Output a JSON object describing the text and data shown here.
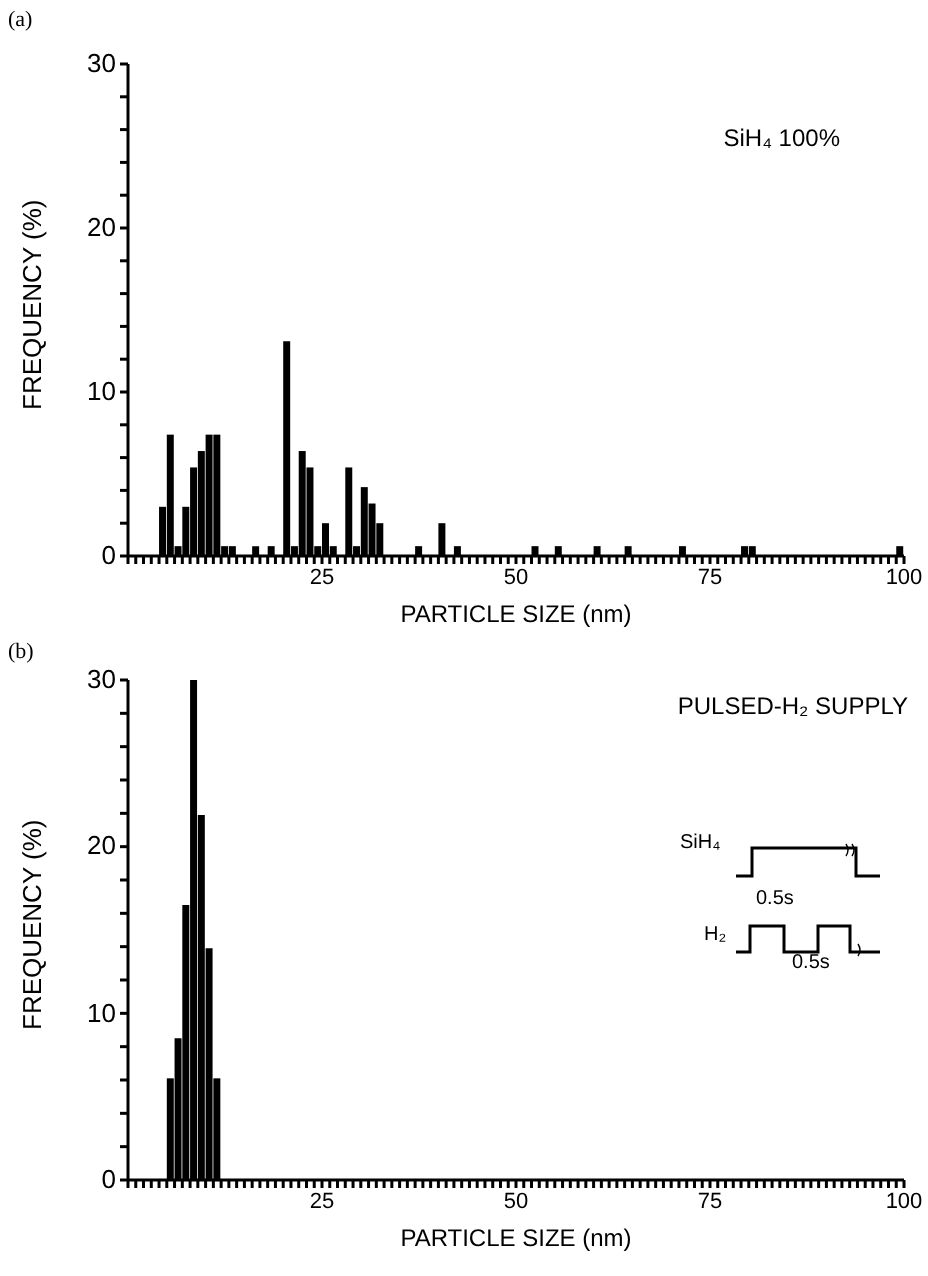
{
  "chart_data": [
    {
      "type": "histogram",
      "title": "(a)",
      "xlabel": "PARTICLE SIZE (nm)",
      "ylabel": "FREQUENCY (%)",
      "annotations": [
        "SiH₄ 100%"
      ],
      "bins": [
        0,
        1,
        2,
        3,
        4,
        5,
        6,
        7,
        8,
        9,
        10,
        11,
        12,
        13,
        14,
        15,
        16,
        17,
        18,
        19,
        20,
        21,
        22,
        23,
        24,
        25,
        26,
        27,
        28,
        29,
        30,
        31,
        32,
        33,
        34,
        35,
        36,
        37,
        38,
        39,
        40,
        41,
        42,
        43,
        44,
        45,
        46,
        47,
        48,
        49,
        50,
        51,
        52,
        53,
        54,
        55,
        56,
        57,
        58,
        59,
        60,
        61,
        62,
        63,
        64,
        65,
        66,
        67,
        68,
        69,
        70,
        71,
        72,
        73,
        74,
        75,
        76,
        77,
        78,
        79,
        80,
        81,
        82,
        83,
        84,
        85,
        86,
        87,
        88,
        89,
        90,
        91,
        92,
        93,
        94,
        95,
        96,
        97,
        98,
        99,
        100
      ],
      "values": [
        0,
        0,
        0,
        0,
        3,
        7.4,
        0.6,
        3,
        5.4,
        6.4,
        7.4,
        7.4,
        0.6,
        0.6,
        0,
        0,
        0.6,
        0,
        0.6,
        0,
        13.1,
        0.6,
        6.4,
        5.4,
        0.6,
        2,
        0.6,
        0,
        5.4,
        0.6,
        4.2,
        3.2,
        2,
        0,
        0,
        0,
        0,
        0.6,
        0,
        0,
        2,
        0,
        0.6,
        0,
        0,
        0,
        0,
        0,
        0,
        0,
        0,
        0,
        0.6,
        0,
        0,
        0.6,
        0,
        0,
        0,
        0,
        0.6,
        0,
        0,
        0,
        0.6,
        0,
        0,
        0,
        0,
        0,
        0,
        0.6,
        0,
        0,
        0,
        0,
        0,
        0,
        0,
        0.6,
        0.6,
        0,
        0,
        0,
        0,
        0,
        0,
        0,
        0,
        0,
        0,
        0,
        0,
        0,
        0,
        0,
        0,
        0,
        0,
        0.6
      ],
      "color": "#000000",
      "xlim": [
        0,
        100
      ],
      "ylim": [
        0,
        30
      ],
      "xticks": [
        {
          "value": 0,
          "label": null
        },
        {
          "value": 1,
          "label": null
        },
        {
          "value": 2,
          "label": null
        },
        {
          "value": 3,
          "label": null
        },
        {
          "value": 4,
          "label": null
        },
        {
          "value": 5,
          "label": null
        },
        {
          "value": 6,
          "label": null
        },
        {
          "value": 7,
          "label": null
        },
        {
          "value": 8,
          "label": null
        },
        {
          "value": 9,
          "label": null
        },
        {
          "value": 10,
          "label": null
        },
        {
          "value": 11,
          "label": null
        },
        {
          "value": 12,
          "label": null
        },
        {
          "value": 13,
          "label": null
        },
        {
          "value": 14,
          "label": null
        },
        {
          "value": 15,
          "label": null
        },
        {
          "value": 16,
          "label": null
        },
        {
          "value": 17,
          "label": null
        },
        {
          "value": 18,
          "label": null
        },
        {
          "value": 19,
          "label": null
        },
        {
          "value": 20,
          "label": null
        },
        {
          "value": 21,
          "label": null
        },
        {
          "value": 22,
          "label": null
        },
        {
          "value": 23,
          "label": null
        },
        {
          "value": 24,
          "label": null
        },
        25,
        {
          "value": 26,
          "label": null
        },
        {
          "value": 27,
          "label": null
        },
        {
          "value": 28,
          "label": null
        },
        {
          "value": 29,
          "label": null
        },
        {
          "value": 30,
          "label": null
        },
        {
          "value": 31,
          "label": null
        },
        {
          "value": 32,
          "label": null
        },
        {
          "value": 33,
          "label": null
        },
        {
          "value": 34,
          "label": null
        },
        {
          "value": 35,
          "label": null
        },
        {
          "value": 36,
          "label": null
        },
        {
          "value": 37,
          "label": null
        },
        {
          "value": 38,
          "label": null
        },
        {
          "value": 39,
          "label": null
        },
        {
          "value": 40,
          "label": null
        },
        {
          "value": 41,
          "label": null
        },
        {
          "value": 42,
          "label": null
        },
        {
          "value": 43,
          "label": null
        },
        {
          "value": 44,
          "label": null
        },
        {
          "value": 45,
          "label": null
        },
        {
          "value": 46,
          "label": null
        },
        {
          "value": 47,
          "label": null
        },
        {
          "value": 48,
          "label": null
        },
        {
          "value": 49,
          "label": null
        },
        50,
        {
          "value": 51,
          "label": null
        },
        {
          "value": 52,
          "label": null
        },
        {
          "value": 53,
          "label": null
        },
        {
          "value": 54,
          "label": null
        },
        {
          "value": 55,
          "label": null
        },
        {
          "value": 56,
          "label": null
        },
        {
          "value": 57,
          "label": null
        },
        {
          "value": 58,
          "label": null
        },
        {
          "value": 59,
          "label": null
        },
        {
          "value": 60,
          "label": null
        },
        {
          "value": 61,
          "label": null
        },
        {
          "value": 62,
          "label": null
        },
        {
          "value": 63,
          "label": null
        },
        {
          "value": 64,
          "label": null
        },
        {
          "value": 65,
          "label": null
        },
        {
          "value": 66,
          "label": null
        },
        {
          "value": 67,
          "label": null
        },
        {
          "value": 68,
          "label": null
        },
        {
          "value": 69,
          "label": null
        },
        {
          "value": 70,
          "label": null
        },
        {
          "value": 71,
          "label": null
        },
        {
          "value": 72,
          "label": null
        },
        {
          "value": 73,
          "label": null
        },
        {
          "value": 74,
          "label": null
        },
        75,
        {
          "value": 76,
          "label": null
        },
        {
          "value": 77,
          "label": null
        },
        {
          "value": 78,
          "label": null
        },
        {
          "value": 79,
          "label": null
        },
        {
          "value": 80,
          "label": null
        },
        {
          "value": 81,
          "label": null
        },
        {
          "value": 82,
          "label": null
        },
        {
          "value": 83,
          "label": null
        },
        {
          "value": 84,
          "label": null
        },
        {
          "value": 85,
          "label": null
        },
        {
          "value": 86,
          "label": null
        },
        {
          "value": 87,
          "label": null
        },
        {
          "value": 88,
          "label": null
        },
        {
          "value": 89,
          "label": null
        },
        {
          "value": 90,
          "label": null
        },
        {
          "value": 91,
          "label": null
        },
        {
          "value": 92,
          "label": null
        },
        {
          "value": 93,
          "label": null
        },
        {
          "value": 94,
          "label": null
        },
        {
          "value": 95,
          "label": null
        },
        {
          "value": 96,
          "label": null
        },
        {
          "value": 97,
          "label": null
        },
        {
          "value": 98,
          "label": null
        },
        {
          "value": 99,
          "label": null
        },
        100
      ],
      "yticks": [
        0,
        {
          "value": 2,
          "label": null
        },
        {
          "value": 4,
          "label": null
        },
        {
          "value": 6,
          "label": null
        },
        {
          "value": 8,
          "label": null
        },
        10,
        {
          "value": 12,
          "label": null
        },
        {
          "value": 14,
          "label": null
        },
        {
          "value": 16,
          "label": null
        },
        {
          "value": 18,
          "label": null
        },
        20,
        {
          "value": 22,
          "label": null
        },
        {
          "value": 24,
          "label": null
        },
        {
          "value": 26,
          "label": null
        },
        {
          "value": 28,
          "label": null
        },
        30
      ],
      "grid": false,
      "legend": false
    },
    {
      "type": "histogram",
      "title": "(b)",
      "xlabel": "PARTICLE SIZE (nm)",
      "ylabel": "FREQUENCY (%)",
      "annotations": [
        "PULSED-H₂ SUPPLY",
        "SiH₄",
        "H₂",
        "0.5s",
        "0.5s"
      ],
      "bins": [
        0,
        1,
        2,
        3,
        4,
        5,
        6,
        7,
        8,
        9,
        10,
        11,
        12,
        13,
        14,
        15,
        16,
        17,
        18,
        19,
        20,
        21,
        22,
        23,
        24,
        25,
        26,
        27,
        28,
        29,
        30,
        31,
        32,
        33,
        34,
        35,
        36,
        37,
        38,
        39,
        40,
        41,
        42,
        43,
        44,
        45,
        46,
        47,
        48,
        49,
        50,
        51,
        52,
        53,
        54,
        55,
        56,
        57,
        58,
        59,
        60,
        61,
        62,
        63,
        64,
        65,
        66,
        67,
        68,
        69,
        70,
        71,
        72,
        73,
        74,
        75,
        76,
        77,
        78,
        79,
        80,
        81,
        82,
        83,
        84,
        85,
        86,
        87,
        88,
        89,
        90,
        91,
        92,
        93,
        94,
        95,
        96,
        97,
        98,
        99,
        100
      ],
      "values": [
        0,
        0,
        0,
        0,
        0,
        6.1,
        8.5,
        16.5,
        30,
        21.9,
        13.9,
        6.1,
        0,
        0,
        0,
        0,
        0,
        0,
        0,
        0,
        0,
        0,
        0,
        0,
        0,
        0,
        0,
        0,
        0,
        0,
        0,
        0,
        0,
        0,
        0,
        0,
        0,
        0,
        0,
        0,
        0,
        0,
        0,
        0,
        0,
        0,
        0,
        0,
        0,
        0,
        0,
        0,
        0,
        0,
        0,
        0,
        0,
        0,
        0,
        0,
        0,
        0,
        0,
        0,
        0,
        0,
        0,
        0,
        0,
        0,
        0,
        0,
        0,
        0,
        0,
        0,
        0,
        0,
        0,
        0,
        0,
        0,
        0,
        0,
        0,
        0,
        0,
        0,
        0,
        0,
        0,
        0,
        0,
        0,
        0,
        0,
        0,
        0,
        0,
        0
      ],
      "color": "#000000",
      "xlim": [
        0,
        100
      ],
      "ylim": [
        0,
        30
      ],
      "xticks": [
        {
          "value": 0,
          "label": null
        },
        {
          "value": 1,
          "label": null
        },
        {
          "value": 2,
          "label": null
        },
        {
          "value": 3,
          "label": null
        },
        {
          "value": 4,
          "label": null
        },
        {
          "value": 5,
          "label": null
        },
        {
          "value": 6,
          "label": null
        },
        {
          "value": 7,
          "label": null
        },
        {
          "value": 8,
          "label": null
        },
        {
          "value": 9,
          "label": null
        },
        {
          "value": 10,
          "label": null
        },
        {
          "value": 11,
          "label": null
        },
        {
          "value": 12,
          "label": null
        },
        {
          "value": 13,
          "label": null
        },
        {
          "value": 14,
          "label": null
        },
        {
          "value": 15,
          "label": null
        },
        {
          "value": 16,
          "label": null
        },
        {
          "value": 17,
          "label": null
        },
        {
          "value": 18,
          "label": null
        },
        {
          "value": 19,
          "label": null
        },
        {
          "value": 20,
          "label": null
        },
        {
          "value": 21,
          "label": null
        },
        {
          "value": 22,
          "label": null
        },
        {
          "value": 23,
          "label": null
        },
        {
          "value": 24,
          "label": null
        },
        25,
        {
          "value": 26,
          "label": null
        },
        {
          "value": 27,
          "label": null
        },
        {
          "value": 28,
          "label": null
        },
        {
          "value": 29,
          "label": null
        },
        {
          "value": 30,
          "label": null
        },
        {
          "value": 31,
          "label": null
        },
        {
          "value": 32,
          "label": null
        },
        {
          "value": 33,
          "label": null
        },
        {
          "value": 34,
          "label": null
        },
        {
          "value": 35,
          "label": null
        },
        {
          "value": 36,
          "label": null
        },
        {
          "value": 37,
          "label": null
        },
        {
          "value": 38,
          "label": null
        },
        {
          "value": 39,
          "label": null
        },
        {
          "value": 40,
          "label": null
        },
        {
          "value": 41,
          "label": null
        },
        {
          "value": 42,
          "label": null
        },
        {
          "value": 43,
          "label": null
        },
        {
          "value": 44,
          "label": null
        },
        {
          "value": 45,
          "label": null
        },
        {
          "value": 46,
          "label": null
        },
        {
          "value": 47,
          "label": null
        },
        {
          "value": 48,
          "label": null
        },
        {
          "value": 49,
          "label": null
        },
        50,
        {
          "value": 51,
          "label": null
        },
        {
          "value": 52,
          "label": null
        },
        {
          "value": 53,
          "label": null
        },
        {
          "value": 54,
          "label": null
        },
        {
          "value": 55,
          "label": null
        },
        {
          "value": 56,
          "label": null
        },
        {
          "value": 57,
          "label": null
        },
        {
          "value": 58,
          "label": null
        },
        {
          "value": 59,
          "label": null
        },
        {
          "value": 60,
          "label": null
        },
        {
          "value": 61,
          "label": null
        },
        {
          "value": 62,
          "label": null
        },
        {
          "value": 63,
          "label": null
        },
        {
          "value": 64,
          "label": null
        },
        {
          "value": 65,
          "label": null
        },
        {
          "value": 66,
          "label": null
        },
        {
          "value": 67,
          "label": null
        },
        {
          "value": 68,
          "label": null
        },
        {
          "value": 69,
          "label": null
        },
        {
          "value": 70,
          "label": null
        },
        {
          "value": 71,
          "label": null
        },
        {
          "value": 72,
          "label": null
        },
        {
          "value": 73,
          "label": null
        },
        {
          "value": 74,
          "label": null
        },
        75,
        {
          "value": 76,
          "label": null
        },
        {
          "value": 77,
          "label": null
        },
        {
          "value": 78,
          "label": null
        },
        {
          "value": 79,
          "label": null
        },
        {
          "value": 80,
          "label": null
        },
        {
          "value": 81,
          "label": null
        },
        {
          "value": 82,
          "label": null
        },
        {
          "value": 83,
          "label": null
        },
        {
          "value": 84,
          "label": null
        },
        {
          "value": 85,
          "label": null
        },
        {
          "value": 86,
          "label": null
        },
        {
          "value": 87,
          "label": null
        },
        {
          "value": 88,
          "label": null
        },
        {
          "value": 89,
          "label": null
        },
        {
          "value": 90,
          "label": null
        },
        {
          "value": 91,
          "label": null
        },
        {
          "value": 92,
          "label": null
        },
        {
          "value": 93,
          "label": null
        },
        {
          "value": 94,
          "label": null
        },
        {
          "value": 95,
          "label": null
        },
        {
          "value": 96,
          "label": null
        },
        {
          "value": 97,
          "label": null
        },
        {
          "value": 98,
          "label": null
        },
        {
          "value": 99,
          "label": null
        },
        100
      ],
      "yticks": [
        0,
        {
          "value": 2,
          "label": null
        },
        {
          "value": 4,
          "label": null
        },
        {
          "value": 6,
          "label": null
        },
        {
          "value": 8,
          "label": null
        },
        10,
        {
          "value": 12,
          "label": null
        },
        {
          "value": 14,
          "label": null
        },
        {
          "value": 16,
          "label": null
        },
        {
          "value": 18,
          "label": null
        },
        20,
        {
          "value": 22,
          "label": null
        },
        {
          "value": 24,
          "label": null
        },
        {
          "value": 26,
          "label": null
        },
        {
          "value": 28,
          "label": null
        },
        30
      ],
      "grid": false,
      "legend": false
    }
  ]
}
